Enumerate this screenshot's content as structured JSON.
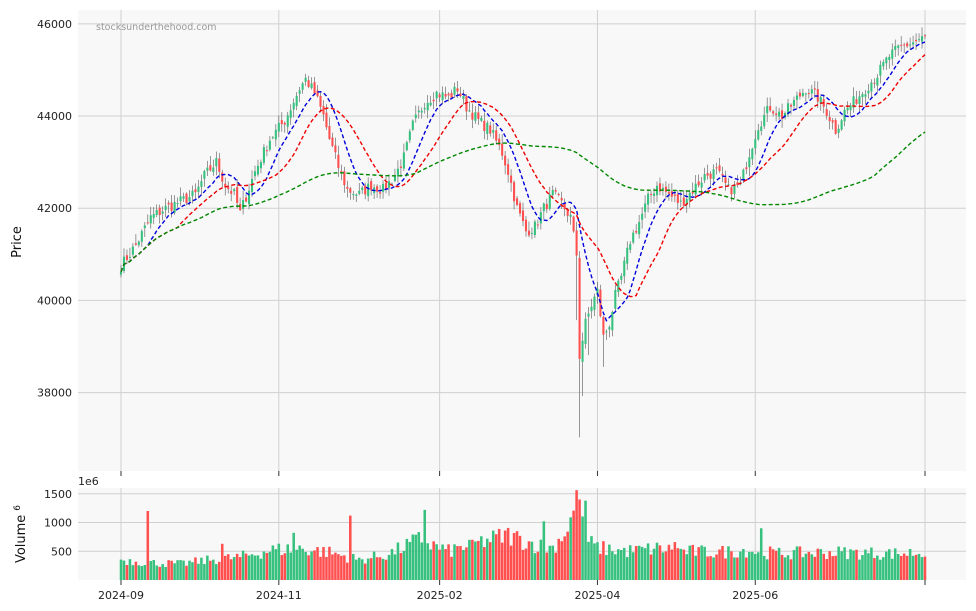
{
  "chart_data": {
    "type": "candlestick",
    "watermark": "stocksunderthehood.com",
    "ylabel": "Price",
    "volume_ylabel": "Volume",
    "volume_ylabel_exp": "6",
    "volume_scale_label": "1e6",
    "x_ticks": [
      "2024-09",
      "2024-11",
      "2025-02",
      "2025-04",
      "2025-06"
    ],
    "price_ticks": [
      38000,
      40000,
      42000,
      44000,
      46000
    ],
    "volume_ticks": [
      500,
      1000,
      1500
    ],
    "price_range": [
      36300,
      46300
    ],
    "volume_range": [
      0,
      1600
    ],
    "candle_colors": {
      "up": "#36c17e",
      "down": "#ff4f4f"
    },
    "ma_colors": {
      "ma_short": "#0000dd",
      "ma_mid": "#ee0000",
      "ma_long": "#008800"
    },
    "grid": true,
    "price_keypoints": [
      [
        0,
        40750
      ],
      [
        5,
        41200
      ],
      [
        10,
        41800
      ],
      [
        15,
        42000
      ],
      [
        20,
        42150
      ],
      [
        25,
        42300
      ],
      [
        28,
        42700
      ],
      [
        32,
        43000
      ],
      [
        35,
        42500
      ],
      [
        38,
        42300
      ],
      [
        40,
        41900
      ],
      [
        45,
        42800
      ],
      [
        50,
        43500
      ],
      [
        55,
        43900
      ],
      [
        60,
        44600
      ],
      [
        62,
        44800
      ],
      [
        65,
        44500
      ],
      [
        68,
        44000
      ],
      [
        70,
        43500
      ],
      [
        73,
        42900
      ],
      [
        76,
        42400
      ],
      [
        80,
        42300
      ],
      [
        84,
        42500
      ],
      [
        88,
        42400
      ],
      [
        92,
        42700
      ],
      [
        95,
        43100
      ],
      [
        98,
        43800
      ],
      [
        102,
        44300
      ],
      [
        106,
        44500
      ],
      [
        110,
        44400
      ],
      [
        113,
        44600
      ],
      [
        116,
        44200
      ],
      [
        120,
        43900
      ],
      [
        124,
        43700
      ],
      [
        128,
        43200
      ],
      [
        130,
        42800
      ],
      [
        133,
        42000
      ],
      [
        136,
        41500
      ],
      [
        139,
        41600
      ],
      [
        142,
        42000
      ],
      [
        145,
        42300
      ],
      [
        148,
        42100
      ],
      [
        151,
        41800
      ],
      [
        153,
        41000
      ],
      [
        154,
        38800
      ],
      [
        156,
        39500
      ],
      [
        158,
        39900
      ],
      [
        160,
        40200
      ],
      [
        162,
        39200
      ],
      [
        164,
        39500
      ],
      [
        166,
        40100
      ],
      [
        168,
        40500
      ],
      [
        171,
        41300
      ],
      [
        174,
        41700
      ],
      [
        177,
        42200
      ],
      [
        180,
        42500
      ],
      [
        184,
        42300
      ],
      [
        188,
        42100
      ],
      [
        192,
        42400
      ],
      [
        196,
        42700
      ],
      [
        200,
        42800
      ],
      [
        204,
        42400
      ],
      [
        208,
        42500
      ],
      [
        211,
        43200
      ],
      [
        214,
        43800
      ],
      [
        218,
        44200
      ],
      [
        222,
        44000
      ],
      [
        226,
        44300
      ],
      [
        230,
        44600
      ],
      [
        234,
        44400
      ],
      [
        237,
        44100
      ],
      [
        240,
        43700
      ],
      [
        243,
        44100
      ],
      [
        246,
        44300
      ],
      [
        250,
        44600
      ],
      [
        254,
        44900
      ],
      [
        258,
        45300
      ],
      [
        262,
        45500
      ],
      [
        266,
        45600
      ],
      [
        270,
        45700
      ]
    ],
    "volume_keypoints": [
      [
        0,
        350
      ],
      [
        10,
        300
      ],
      [
        20,
        280
      ],
      [
        30,
        350
      ],
      [
        40,
        400
      ],
      [
        50,
        520
      ],
      [
        60,
        550
      ],
      [
        70,
        480
      ],
      [
        80,
        350
      ],
      [
        90,
        450
      ],
      [
        100,
        700
      ],
      [
        110,
        500
      ],
      [
        120,
        650
      ],
      [
        130,
        780
      ],
      [
        140,
        600
      ],
      [
        145,
        560
      ],
      [
        150,
        900
      ],
      [
        153,
        1350
      ],
      [
        156,
        700
      ],
      [
        160,
        560
      ],
      [
        170,
        500
      ],
      [
        180,
        550
      ],
      [
        190,
        500
      ],
      [
        200,
        480
      ],
      [
        210,
        520
      ],
      [
        220,
        460
      ],
      [
        230,
        470
      ],
      [
        240,
        480
      ],
      [
        250,
        470
      ],
      [
        260,
        460
      ],
      [
        270,
        480
      ]
    ],
    "volume_spikes": [
      [
        9,
        1200
      ],
      [
        34,
        630
      ],
      [
        58,
        820
      ],
      [
        77,
        1120
      ],
      [
        102,
        1220
      ],
      [
        118,
        700
      ],
      [
        129,
        860
      ],
      [
        142,
        1020
      ],
      [
        154,
        1400
      ],
      [
        156,
        1380
      ],
      [
        186,
        660
      ],
      [
        215,
        900
      ]
    ]
  }
}
